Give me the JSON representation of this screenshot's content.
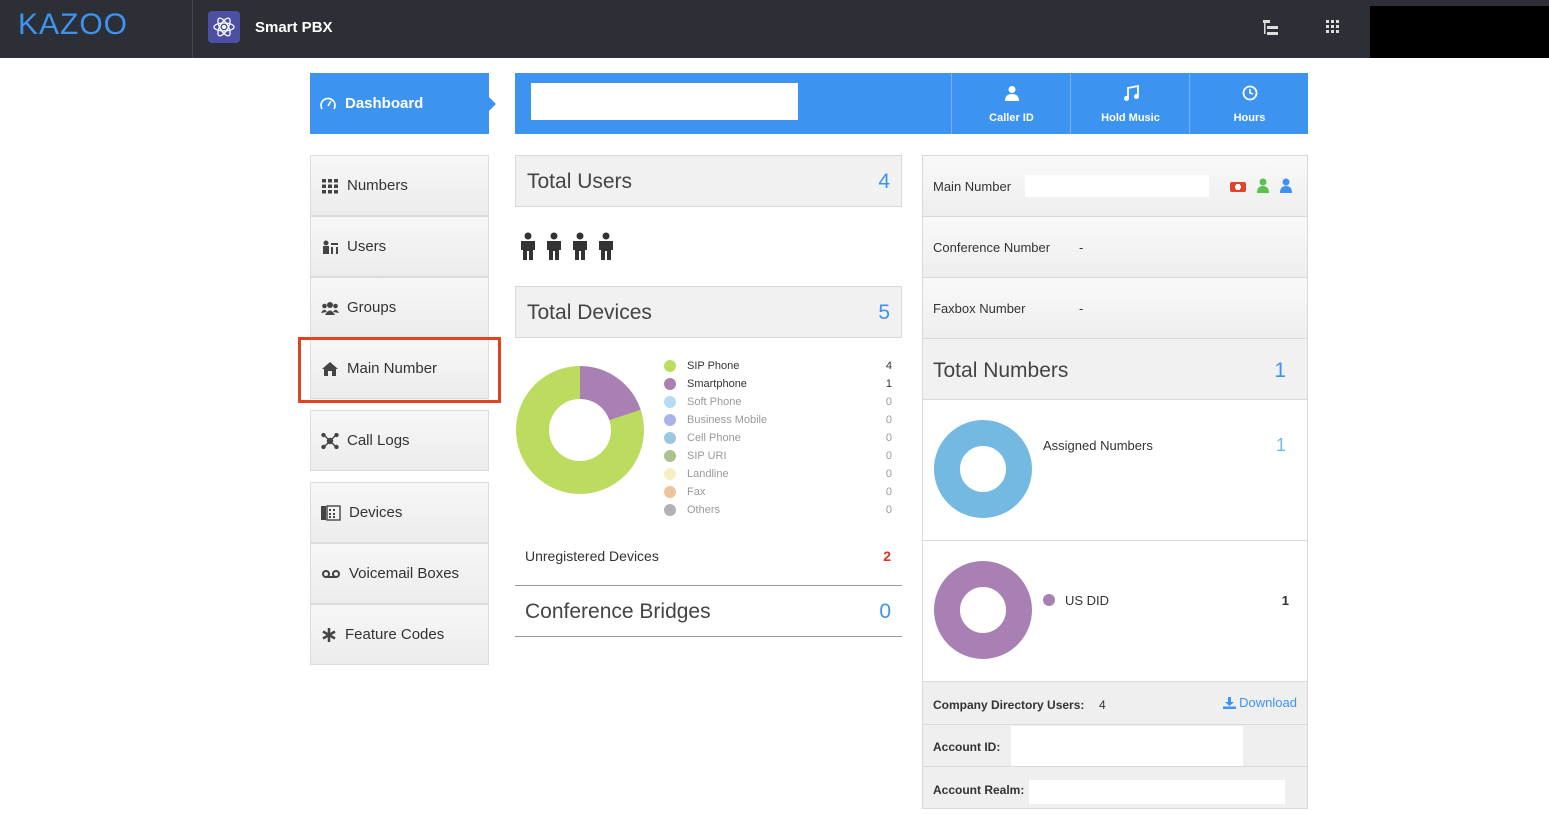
{
  "header": {
    "logo": "KAZOO",
    "app": "Smart PBX"
  },
  "nav": {
    "active": "Dashboard",
    "items": [
      "Numbers",
      "Users",
      "Groups",
      "Main Number",
      "Call Logs",
      "Devices",
      "Voicemail Boxes",
      "Feature Codes"
    ]
  },
  "toolbar": [
    "Caller ID",
    "Hold Music",
    "Hours"
  ],
  "users": {
    "title": "Total Users",
    "count": 4
  },
  "devices": {
    "title": "Total Devices",
    "count": 5,
    "breakdown": [
      {
        "name": "SIP Phone",
        "count": 4,
        "color": "#bcdc5f"
      },
      {
        "name": "Smartphone",
        "count": 1,
        "color": "#a880b4"
      },
      {
        "name": "Soft Phone",
        "count": 0,
        "color": "#b5dcf2"
      },
      {
        "name": "Business Mobile",
        "count": 0,
        "color": "#aab4ec"
      },
      {
        "name": "Cell Phone",
        "count": 0,
        "color": "#9cc7e0"
      },
      {
        "name": "SIP URI",
        "count": 0,
        "color": "#a9c38f"
      },
      {
        "name": "Landline",
        "count": 0,
        "color": "#f6efc2"
      },
      {
        "name": "Fax",
        "count": 0,
        "color": "#efc39c"
      },
      {
        "name": "Others",
        "count": 0,
        "color": "#b2b2b2"
      }
    ]
  },
  "unregistered": {
    "label": "Unregistered Devices",
    "count": 2
  },
  "conference": {
    "label": "Conference Bridges",
    "count": 0
  },
  "numbers": {
    "main_label": "Main Number",
    "conference_label": "Conference Number",
    "conference_value": "-",
    "faxbox_label": "Faxbox Number",
    "faxbox_value": "-",
    "total_title": "Total Numbers",
    "total": 1,
    "assigned_label": "Assigned Numbers",
    "assigned": 1,
    "assigned_color": "#74b9e2",
    "types": [
      {
        "name": "US DID",
        "count": 1,
        "color": "#a880b4"
      }
    ]
  },
  "directory": {
    "label": "Company Directory Users:",
    "count": 4,
    "download": "Download"
  },
  "account": {
    "id_label": "Account ID:",
    "realm_label": "Account Realm:"
  }
}
